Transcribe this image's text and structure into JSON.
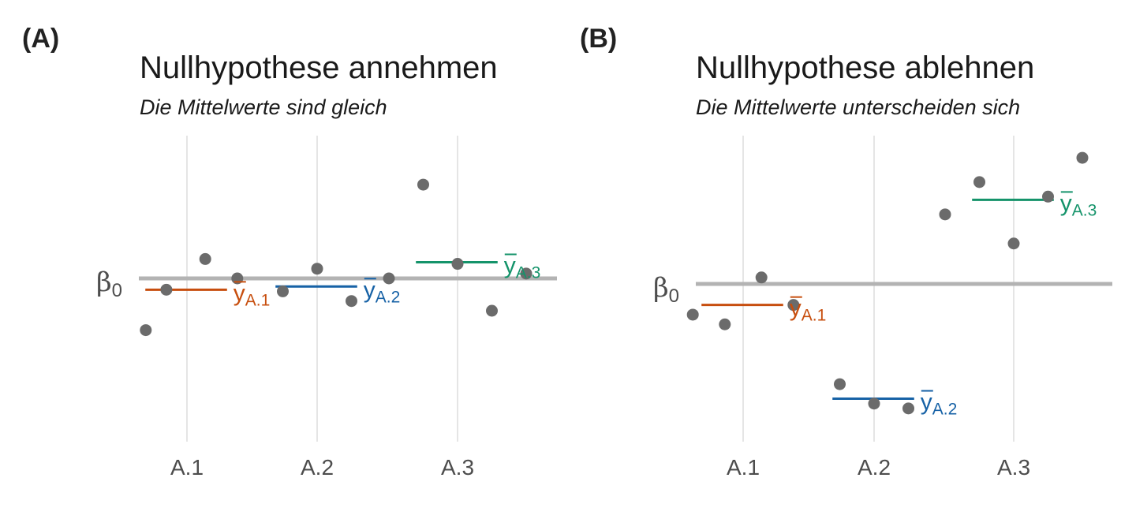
{
  "panels": [
    {
      "tag": "(A)",
      "title": "Nullhypothese annehmen",
      "subtitle": "Die Mittelwerte sind gleich"
    },
    {
      "tag": "(B)",
      "title": "Nullhypothese ablehnen",
      "subtitle": "Die Mittelwerte unterscheiden sich"
    }
  ],
  "colors": {
    "A.1": "#C74E0E",
    "A.2": "#1762A6",
    "A.3": "#14936A",
    "points": "#6B6B6B",
    "baseline": "#B3B3B3",
    "grid": "#E5E5E5"
  },
  "chart_data": [
    {
      "type": "scatter",
      "title": "Nullhypothese annehmen",
      "subtitle": "Die Mittelwerte sind gleich",
      "categories": [
        "A.1",
        "A.2",
        "A.3"
      ],
      "ylim": [
        -9.0,
        8.5
      ],
      "baseline": {
        "label": "β",
        "label_sub": "0",
        "value": 0
      },
      "groups": [
        {
          "name": "A.1",
          "points": [
            [
              -0.18,
              -3.2
            ],
            [
              -0.09,
              -0.7
            ],
            [
              0.08,
              1.2
            ],
            [
              0.22,
              0.0
            ]
          ],
          "mean": -0.7,
          "mean_label": "y",
          "mean_sub": "A.1"
        },
        {
          "name": "A.2",
          "points": [
            [
              -0.15,
              -0.8
            ],
            [
              0.0,
              0.6
            ],
            [
              0.15,
              -1.4
            ]
          ],
          "mean": -0.5,
          "mean_label": "y",
          "mean_sub": "A.2"
        },
        {
          "name": "A.3",
          "points": [
            [
              -0.3,
              0.0
            ],
            [
              -0.15,
              5.8
            ],
            [
              0.0,
              0.9
            ],
            [
              0.15,
              -2.0
            ],
            [
              0.3,
              0.3
            ]
          ],
          "mean": 1.0,
          "mean_label": "y",
          "mean_sub": "A.3"
        }
      ],
      "grid": true,
      "axis": {
        "x_ticks": true,
        "y_ticks": false
      }
    },
    {
      "type": "scatter",
      "title": "Nullhypothese ablehnen",
      "subtitle": "Die Mittelwerte unterscheiden sich",
      "categories": [
        "A.1",
        "A.2",
        "A.3"
      ],
      "ylim": [
        -9.0,
        8.5
      ],
      "baseline": {
        "label": "β",
        "label_sub": "0",
        "value": 0
      },
      "groups": [
        {
          "name": "A.1",
          "points": [
            [
              -0.22,
              -1.9
            ],
            [
              -0.08,
              -2.5
            ],
            [
              0.08,
              0.4
            ],
            [
              0.22,
              -1.3
            ]
          ],
          "mean": -1.3,
          "mean_label": "y",
          "mean_sub": "A.1"
        },
        {
          "name": "A.2",
          "points": [
            [
              -0.15,
              -6.2
            ],
            [
              0.0,
              -7.4
            ],
            [
              0.15,
              -7.7
            ]
          ],
          "mean": -7.1,
          "mean_label": "y",
          "mean_sub": "A.2"
        },
        {
          "name": "A.3",
          "points": [
            [
              -0.3,
              4.3
            ],
            [
              -0.15,
              6.3
            ],
            [
              0.0,
              2.5
            ],
            [
              0.15,
              5.4
            ],
            [
              0.3,
              7.8
            ]
          ],
          "mean": 5.2,
          "mean_label": "y",
          "mean_sub": "A.3"
        }
      ],
      "grid": true,
      "axis": {
        "x_ticks": true,
        "y_ticks": false
      }
    }
  ]
}
